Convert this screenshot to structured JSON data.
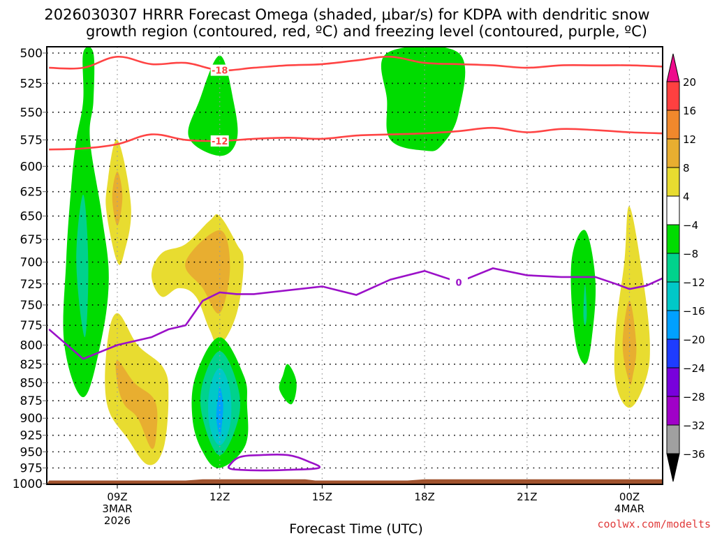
{
  "chart_data": {
    "type": "heatmap",
    "title_line1": "2026030307 HRRR Forecast Omega (shaded, μbar/s) for KDPA with dendritic snow",
    "title_line2": "growth region (contoured, red, ºC) and freezing level (contoured, purple, ºC)",
    "xlabel": "Forecast Time (UTC)",
    "ylabel": "",
    "credit": "coolwx.com/modelts",
    "x_range_hours_from_09Z": [
      -2,
      16
    ],
    "x_ticks": [
      {
        "hour": 0,
        "label": "09Z",
        "sub1": "3MAR",
        "sub2": "2026"
      },
      {
        "hour": 3,
        "label": "12Z",
        "sub1": "",
        "sub2": ""
      },
      {
        "hour": 6,
        "label": "15Z",
        "sub1": "",
        "sub2": ""
      },
      {
        "hour": 9,
        "label": "18Z",
        "sub1": "",
        "sub2": ""
      },
      {
        "hour": 12,
        "label": "21Z",
        "sub1": "",
        "sub2": ""
      },
      {
        "hour": 15,
        "label": "00Z",
        "sub1": "4MAR",
        "sub2": ""
      }
    ],
    "y_axis": {
      "scale": "log-pressure",
      "range_hPa": [
        500,
        1000
      ],
      "inverted": true,
      "ticks": [
        "500",
        "525",
        "550",
        "575",
        "600",
        "625",
        "650",
        "675",
        "700",
        "725",
        "750",
        "775",
        "800",
        "825",
        "850",
        "875",
        "900",
        "925",
        "950",
        "975",
        "1000"
      ]
    },
    "grid": true,
    "colorbar": {
      "placement": "right",
      "levels": [
        20,
        16,
        12,
        8,
        4,
        -4,
        -8,
        -12,
        -16,
        -20,
        -24,
        -28,
        -32,
        -36
      ],
      "labels": [
        "20",
        "16",
        "12",
        "8",
        "4",
        "−4",
        "−8",
        "−12",
        "−16",
        "−20",
        "−24",
        "−28",
        "−32",
        "−36"
      ],
      "over_color": "#ee0c8c",
      "colors": [
        "#ff4040",
        "#f0882c",
        "#e8ae30",
        "#e8dc30",
        "#ffffff",
        "#00dc00",
        "#00d28c",
        "#00c8c8",
        "#00a0ff",
        "#1e3cff",
        "#7800dc",
        "#a000c8",
        "#a0a0a0"
      ],
      "under_color": "#000000"
    },
    "omega_features": [
      {
        "name": "green column 08Z",
        "level": "-4 to -8",
        "color": "#00dc00",
        "outline": [
          [
            -1.0,
            500
          ],
          [
            -0.7,
            500
          ],
          [
            -0.7,
            540
          ],
          [
            -0.8,
            575
          ],
          [
            -0.45,
            650
          ],
          [
            -0.25,
            720
          ],
          [
            -0.5,
            800
          ],
          [
            -1.0,
            870
          ],
          [
            -1.55,
            800
          ],
          [
            -1.5,
            700
          ],
          [
            -1.35,
            620
          ],
          [
            -1.2,
            575
          ],
          [
            -1.0,
            540
          ]
        ]
      },
      {
        "name": "teal core 08Z",
        "level": "-8 to -12",
        "color": "#00d28c",
        "outline": [
          [
            -1.0,
            628
          ],
          [
            -0.85,
            700
          ],
          [
            -0.95,
            790
          ],
          [
            -1.2,
            700
          ]
        ]
      },
      {
        "name": "yellow 09Z upper",
        "level": "4 to 8",
        "color": "#e8dc30",
        "outline": [
          [
            0.0,
            575
          ],
          [
            0.4,
            640
          ],
          [
            0.2,
            690
          ],
          [
            0.0,
            700
          ],
          [
            -0.3,
            650
          ],
          [
            -0.3,
            620
          ]
        ]
      },
      {
        "name": "orange 09Z upper",
        "level": "8 to 12",
        "color": "#e8ae30",
        "outline": [
          [
            0.0,
            605
          ],
          [
            0.15,
            630
          ],
          [
            0.0,
            660
          ],
          [
            -0.15,
            630
          ]
        ]
      },
      {
        "name": "yellow 09Z lower",
        "level": "4 to 8",
        "color": "#e8dc30",
        "outline": [
          [
            0.0,
            760
          ],
          [
            0.6,
            800
          ],
          [
            1.35,
            830
          ],
          [
            1.5,
            870
          ],
          [
            1.35,
            945
          ],
          [
            0.9,
            970
          ],
          [
            0.3,
            930
          ],
          [
            -0.3,
            880
          ],
          [
            -0.3,
            800
          ]
        ]
      },
      {
        "name": "orange 09Z lower",
        "level": "8 to 12",
        "color": "#e8ae30",
        "outline": [
          [
            0.0,
            820
          ],
          [
            0.5,
            850
          ],
          [
            1.1,
            875
          ],
          [
            1.15,
            920
          ],
          [
            1.0,
            945
          ],
          [
            0.6,
            900
          ],
          [
            0.2,
            880
          ],
          [
            0.0,
            850
          ]
        ]
      },
      {
        "name": "yellow 13Z",
        "level": "4 to 8",
        "color": "#e8dc30",
        "outline": [
          [
            1.0,
            715
          ],
          [
            1.3,
            690
          ],
          [
            2.0,
            680
          ],
          [
            2.7,
            655
          ],
          [
            3.0,
            650
          ],
          [
            3.5,
            680
          ],
          [
            3.7,
            700
          ],
          [
            3.5,
            760
          ],
          [
            3.0,
            800
          ],
          [
            2.7,
            780
          ],
          [
            2.3,
            740
          ],
          [
            1.8,
            730
          ],
          [
            1.3,
            740
          ]
        ]
      },
      {
        "name": "orange 13Z",
        "level": "8 to 12",
        "color": "#e8ae30",
        "outline": [
          [
            2.0,
            700
          ],
          [
            3.0,
            665
          ],
          [
            3.3,
            705
          ],
          [
            3.0,
            760
          ],
          [
            2.5,
            730
          ]
        ]
      },
      {
        "name": "green upper 13Z",
        "level": "-4 to -8",
        "color": "#00dc00",
        "outline": [
          [
            3.0,
            502
          ],
          [
            3.4,
            540
          ],
          [
            3.5,
            575
          ],
          [
            3.0,
            590
          ],
          [
            2.1,
            573
          ],
          [
            2.4,
            540
          ]
        ]
      },
      {
        "name": "green lower 12Z",
        "level": "-4 to -8",
        "color": "#00dc00",
        "outline": [
          [
            3.0,
            790
          ],
          [
            3.7,
            840
          ],
          [
            3.8,
            880
          ],
          [
            3.75,
            940
          ],
          [
            3.0,
            975
          ],
          [
            2.5,
            950
          ],
          [
            2.2,
            900
          ],
          [
            2.3,
            840
          ]
        ]
      },
      {
        "name": "teal lower 12Z",
        "level": "-8 to -12",
        "color": "#00d28c",
        "outline": [
          [
            3.0,
            808
          ],
          [
            3.5,
            850
          ],
          [
            3.55,
            900
          ],
          [
            3.0,
            955
          ],
          [
            2.5,
            900
          ],
          [
            2.5,
            850
          ]
        ]
      },
      {
        "name": "cyan lower 12Z",
        "level": "-12 to -16",
        "color": "#00c8c8",
        "outline": [
          [
            3.0,
            830
          ],
          [
            3.3,
            860
          ],
          [
            3.3,
            910
          ],
          [
            3.0,
            940
          ],
          [
            2.7,
            910
          ],
          [
            2.7,
            860
          ]
        ]
      },
      {
        "name": "blue lower 12Z",
        "level": "-16 to -20",
        "color": "#00a0ff",
        "outline": [
          [
            3.0,
            855
          ],
          [
            3.1,
            880
          ],
          [
            3.05,
            915
          ],
          [
            3.0,
            925
          ],
          [
            2.9,
            900
          ],
          [
            2.95,
            870
          ]
        ]
      },
      {
        "name": "green 14Z",
        "level": "-4 to -8",
        "color": "#00dc00",
        "outline": [
          [
            5.0,
            825
          ],
          [
            5.25,
            850
          ],
          [
            5.1,
            880
          ],
          [
            4.75,
            860
          ],
          [
            4.85,
            840
          ]
        ]
      },
      {
        "name": "green 18Z upper",
        "level": "-4 to -8",
        "color": "#00dc00",
        "outline": [
          [
            7.9,
            500
          ],
          [
            10.0,
            500
          ],
          [
            10.0,
            550
          ],
          [
            9.5,
            580
          ],
          [
            9.0,
            585
          ],
          [
            8.0,
            575
          ],
          [
            7.9,
            540
          ]
        ]
      },
      {
        "name": "green 23Z",
        "level": "-4 to -8",
        "color": "#00dc00",
        "outline": [
          [
            13.7,
            665
          ],
          [
            14.0,
            720
          ],
          [
            13.9,
            790
          ],
          [
            13.7,
            825
          ],
          [
            13.4,
            790
          ],
          [
            13.3,
            700
          ]
        ]
      },
      {
        "name": "teal 23Z",
        "level": "-8 to -12",
        "color": "#00d28c",
        "outline": [
          [
            13.7,
            725
          ],
          [
            13.75,
            760
          ],
          [
            13.7,
            775
          ],
          [
            13.65,
            760
          ]
        ]
      },
      {
        "name": "yellow 00Z",
        "level": "4 to 8",
        "color": "#e8dc30",
        "outline": [
          [
            15.0,
            640
          ],
          [
            15.4,
            720
          ],
          [
            15.6,
            800
          ],
          [
            15.45,
            850
          ],
          [
            15.0,
            885
          ],
          [
            14.6,
            850
          ],
          [
            14.6,
            780
          ],
          [
            14.85,
            700
          ]
        ]
      },
      {
        "name": "orange 00Z",
        "level": "8 to 12",
        "color": "#e8ae30",
        "outline": [
          [
            15.0,
            745
          ],
          [
            15.2,
            800
          ],
          [
            15.1,
            840
          ],
          [
            15.0,
            850
          ],
          [
            14.8,
            800
          ]
        ]
      }
    ],
    "dgz_contours": [
      {
        "label": "-18",
        "color": "#ff4444",
        "points": [
          [
            -2,
            512
          ],
          [
            -1,
            512
          ],
          [
            0,
            503
          ],
          [
            1,
            509
          ],
          [
            2,
            508
          ],
          [
            3,
            514
          ],
          [
            4,
            512
          ],
          [
            5,
            510
          ],
          [
            6,
            509
          ],
          [
            7,
            506
          ],
          [
            8,
            503
          ],
          [
            9,
            508
          ],
          [
            10,
            509
          ],
          [
            11,
            510
          ],
          [
            12,
            512
          ],
          [
            13,
            510
          ],
          [
            14,
            510
          ],
          [
            15,
            510
          ],
          [
            16,
            511
          ]
        ],
        "label_at_hour": 3
      },
      {
        "label": "-12",
        "color": "#ff4444",
        "points": [
          [
            -2,
            584
          ],
          [
            -1,
            583
          ],
          [
            0,
            579
          ],
          [
            1,
            570
          ],
          [
            2,
            575
          ],
          [
            3,
            576
          ],
          [
            4,
            574
          ],
          [
            5,
            573
          ],
          [
            6,
            574
          ],
          [
            7,
            571
          ],
          [
            8,
            570
          ],
          [
            9,
            569
          ],
          [
            10,
            567
          ],
          [
            11,
            564
          ],
          [
            12,
            568
          ],
          [
            13,
            565
          ],
          [
            14,
            566
          ],
          [
            15,
            568
          ],
          [
            16,
            569
          ]
        ],
        "label_at_hour": 3
      }
    ],
    "freezing_level_contours": [
      {
        "label": "0",
        "color": "#9b10c8",
        "points": [
          [
            -2,
            780
          ],
          [
            -1.6,
            795
          ],
          [
            -1,
            818
          ],
          [
            0,
            800
          ],
          [
            1,
            790
          ],
          [
            1.5,
            780
          ],
          [
            2,
            775
          ],
          [
            2.5,
            745
          ],
          [
            3,
            735
          ],
          [
            3.5,
            737
          ],
          [
            4,
            737
          ],
          [
            6,
            728
          ],
          [
            7,
            738
          ],
          [
            8,
            720
          ],
          [
            9,
            710
          ],
          [
            10,
            723
          ],
          [
            11,
            707
          ],
          [
            12,
            715
          ],
          [
            13,
            717
          ],
          [
            14,
            717
          ],
          [
            14.6,
            725
          ],
          [
            15,
            731
          ],
          [
            15.5,
            727
          ],
          [
            16,
            718
          ]
        ],
        "label_at_hour": 10
      },
      {
        "label": "0 (closed loop near surface)",
        "color": "#9b10c8",
        "points": [
          [
            3.3,
            970
          ],
          [
            3.6,
            958
          ],
          [
            4.2,
            955
          ],
          [
            5.0,
            955
          ],
          [
            5.6,
            965
          ],
          [
            5.9,
            975
          ],
          [
            5.0,
            978
          ],
          [
            4.2,
            979
          ],
          [
            3.6,
            978
          ],
          [
            3.3,
            976
          ]
        ]
      }
    ],
    "terrain": {
      "color": "#a0522d",
      "surface_hPa_by_hour": [
        [
          -2,
          996
        ],
        [
          2.0,
          996
        ],
        [
          2.5,
          994
        ],
        [
          5.5,
          994
        ],
        [
          5.8,
          996
        ],
        [
          8.5,
          996
        ],
        [
          9,
          994
        ],
        [
          16,
          994
        ]
      ]
    }
  }
}
